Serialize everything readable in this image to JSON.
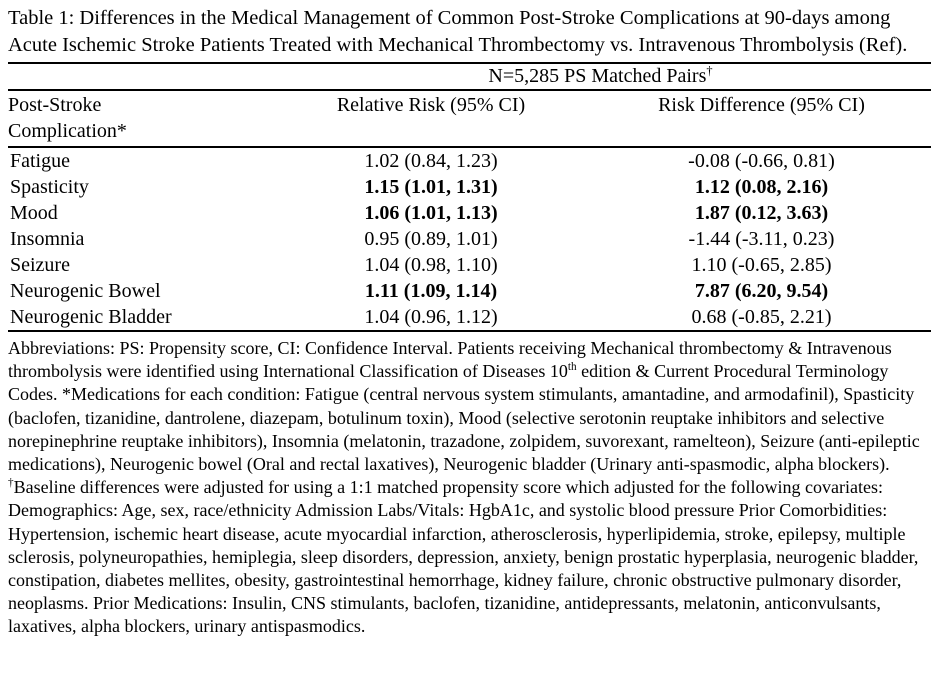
{
  "colors": {
    "text": "#000000",
    "background": "#ffffff"
  },
  "title": "Table 1: Differences in the Medical Management of Common Post-Stroke Complications at 90-days among Acute Ischemic Stroke Patients Treated with Mechanical Thrombectomy vs. Intravenous Thrombolysis (Ref).",
  "table": {
    "spanner": [
      {
        "text": "N=5,285 PS Matched Pairs"
      },
      {
        "text": "†",
        "sup": true
      }
    ],
    "columns": [
      "Post-Stroke\nComplication*",
      "Relative Risk (95% CI)",
      "Risk Difference (95% CI)"
    ],
    "rows": [
      {
        "complication": "Fatigue",
        "relative_risk": "1.02 (0.84, 1.23)",
        "risk_difference": "-0.08 (-0.66, 0.81)",
        "bold": false
      },
      {
        "complication": "Spasticity",
        "relative_risk": "1.15 (1.01, 1.31)",
        "risk_difference": "1.12 (0.08, 2.16)",
        "bold": true
      },
      {
        "complication": "Mood",
        "relative_risk": "1.06 (1.01, 1.13)",
        "risk_difference": "1.87 (0.12, 3.63)",
        "bold": true
      },
      {
        "complication": "Insomnia",
        "relative_risk": "0.95 (0.89, 1.01)",
        "risk_difference": "-1.44 (-3.11, 0.23)",
        "bold": false
      },
      {
        "complication": "Seizure",
        "relative_risk": "1.04 (0.98, 1.10)",
        "risk_difference": "1.10 (-0.65, 2.85)",
        "bold": false
      },
      {
        "complication": "Neurogenic Bowel",
        "relative_risk": "1.11 (1.09, 1.14)",
        "risk_difference": "7.87 (6.20, 9.54)",
        "bold": true
      },
      {
        "complication": "Neurogenic Bladder",
        "relative_risk": "1.04 (0.96, 1.12)",
        "risk_difference": "0.68 (-0.85, 2.21)",
        "bold": false
      }
    ]
  },
  "footnote_segments": [
    {
      "text": "Abbreviations: PS: Propensity score, CI: Confidence Interval. Patients receiving Mechanical thrombectomy & Intravenous thrombolysis were identified using International Classification of Diseases 10"
    },
    {
      "text": "th",
      "sup": true
    },
    {
      "text": " edition & Current Procedural Terminology Codes. *Medications for each condition: Fatigue (central nervous system stimulants, amantadine, and armodafinil), Spasticity (baclofen, tizanidine, dantrolene, diazepam, botulinum toxin), Mood (selective serotonin reuptake inhibitors and selective norepinephrine reuptake inhibitors), Insomnia (melatonin, trazadone, zolpidem, suvorexant, ramelteon), Seizure (anti-epileptic medications), Neurogenic bowel (Oral and rectal laxatives), Neurogenic bladder (Urinary anti-spasmodic, alpha blockers). "
    },
    {
      "text": "†",
      "sup": true
    },
    {
      "text": "Baseline differences were adjusted for using a 1:1 matched propensity score which adjusted for the following covariates: Demographics: Age, sex, race/ethnicity Admission Labs/Vitals: HgbA1c, and systolic blood pressure Prior Comorbidities: Hypertension, ischemic heart disease, acute myocardial infarction, atherosclerosis, hyperlipidemia, stroke, epilepsy, multiple sclerosis, polyneuropathies, hemiplegia, sleep disorders, depression, anxiety, benign prostatic hyperplasia, neurogenic bladder, constipation, diabetes mellites, obesity, gastrointestinal hemorrhage, kidney failure, chronic obstructive pulmonary disorder, neoplasms. Prior Medications: Insulin, CNS stimulants, baclofen, tizanidine, antidepressants, melatonin, anticonvulsants, laxatives, alpha blockers, urinary antispasmodics."
    }
  ]
}
